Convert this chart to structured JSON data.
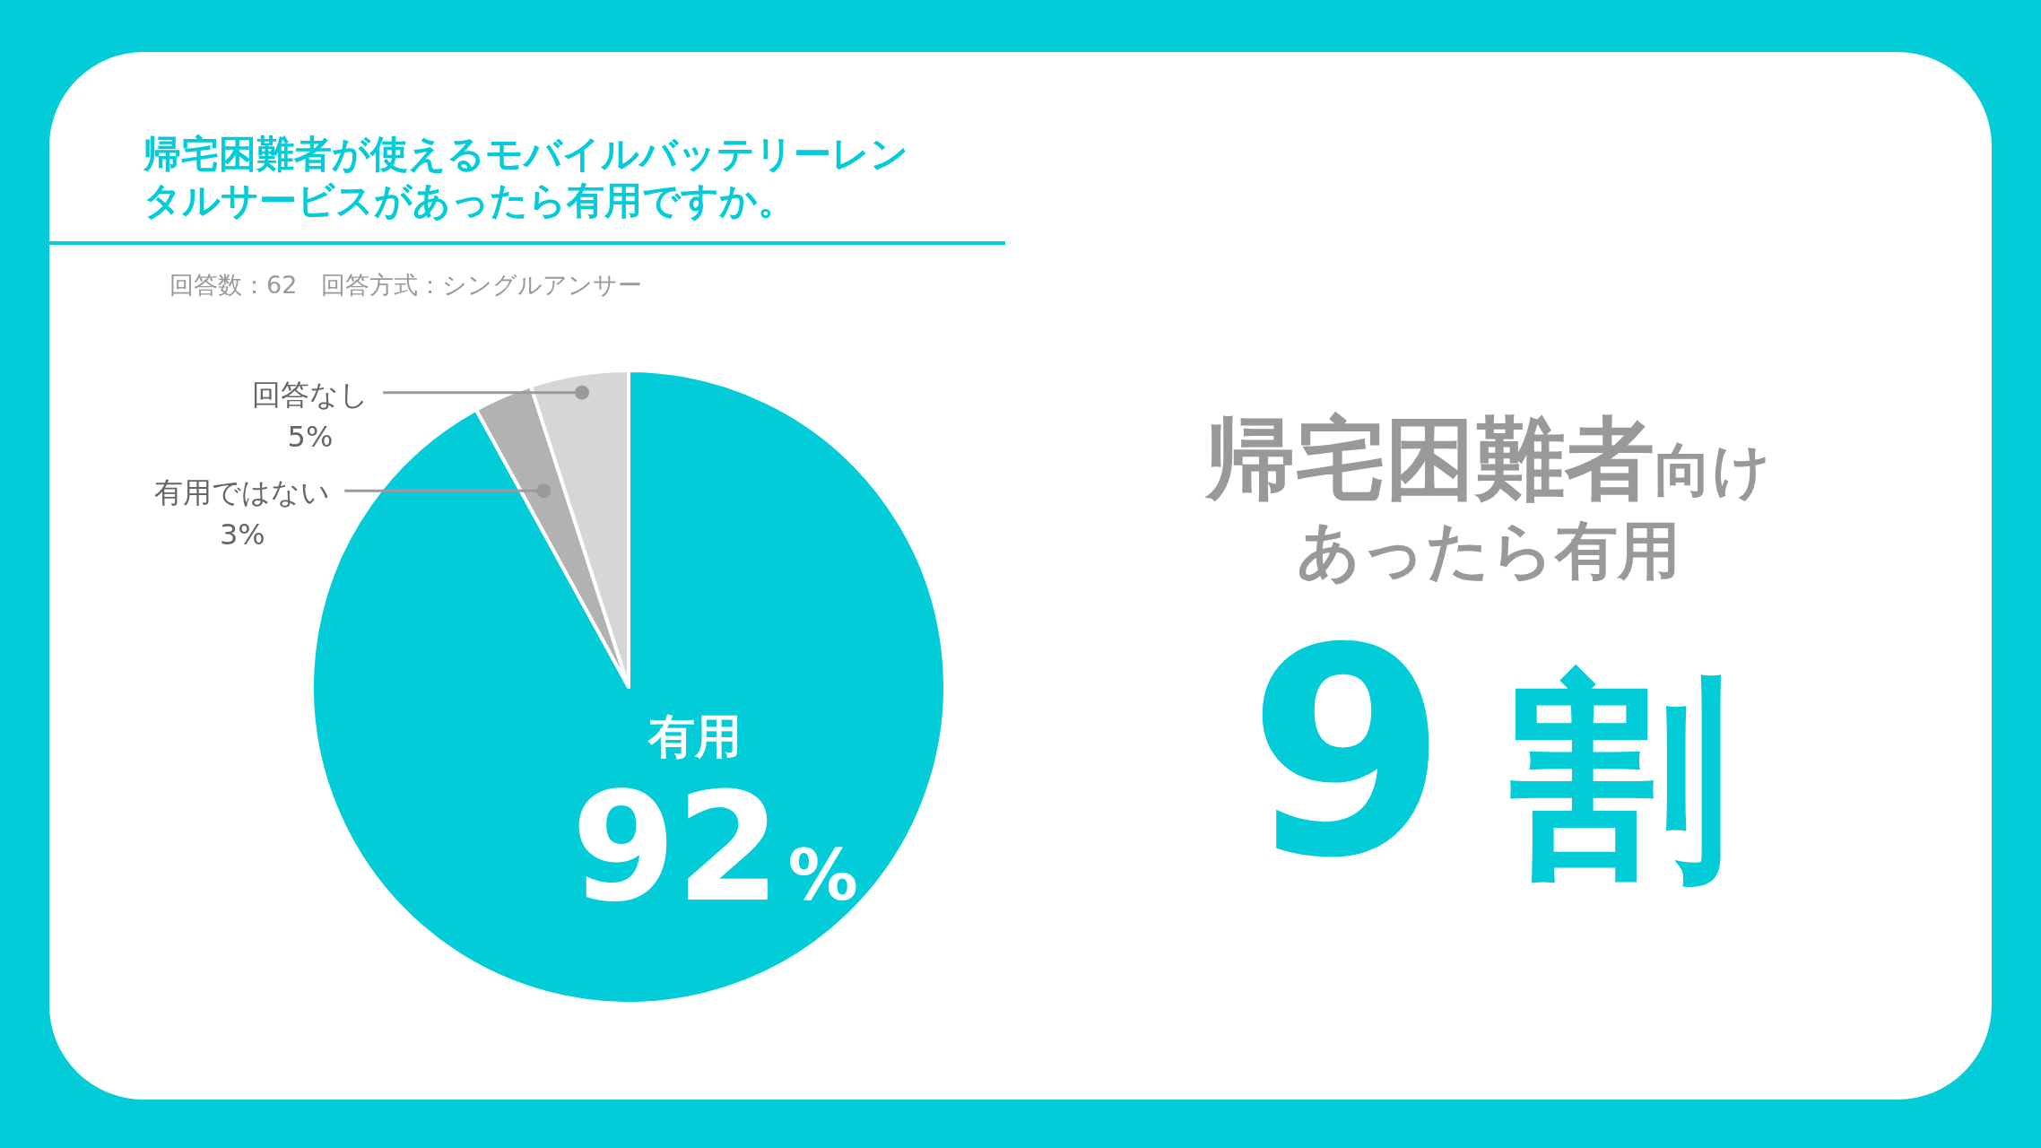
{
  "chart_data": {
    "type": "pie",
    "title": "帰宅困難者が使えるモバイルバッテリーレンタルサービスがあったら有用ですか。",
    "subtitle": "回答数：62　回答方式：シングルアンサー",
    "categories": [
      "有用",
      "有用ではない",
      "回答なし"
    ],
    "values": [
      92,
      3,
      5
    ],
    "colors": [
      "#03ccd9",
      "#b2b2b2",
      "#d6d6d6"
    ],
    "value_labels": [
      "92%",
      "3%",
      "5%"
    ],
    "annotations": [
      "帰宅困難者",
      "向け",
      "あったら有用",
      "9",
      "割"
    ]
  }
}
